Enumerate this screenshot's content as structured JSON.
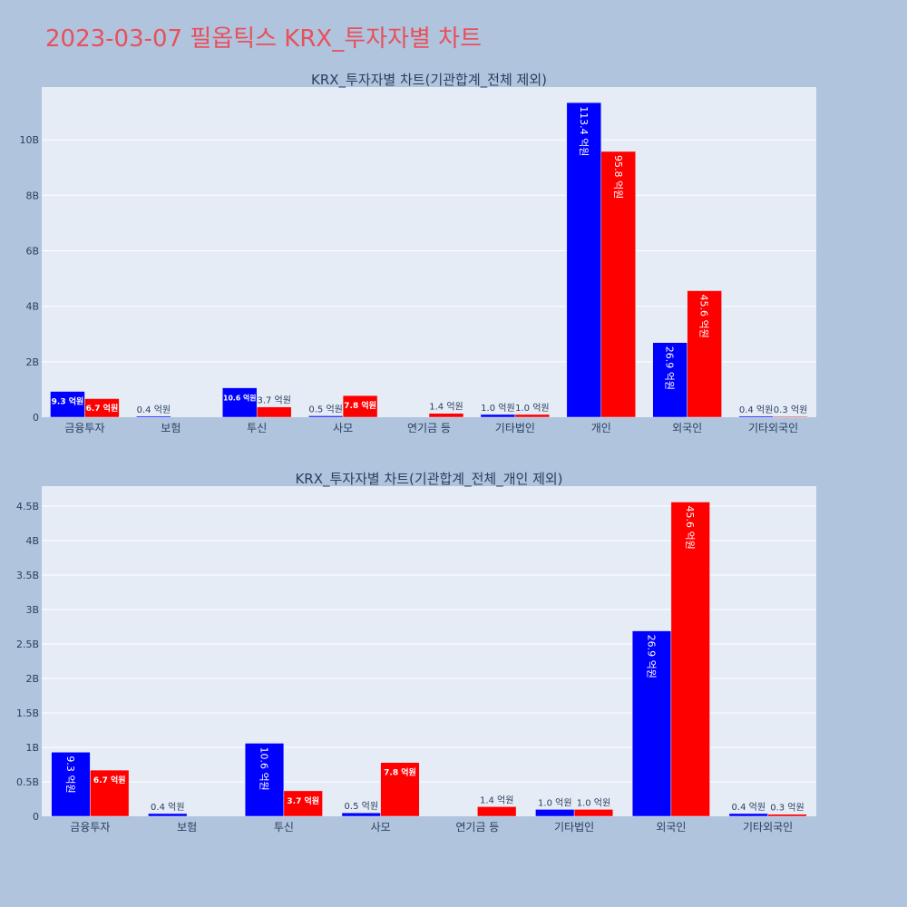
{
  "page_title": "2023-03-07 필옵틱스 KRX_투자자별 차트",
  "colors": {
    "buy": "#0000ff",
    "sell": "#ff0000",
    "plot_bg": "#e5ecf6",
    "paper_bg": "#b0c4de",
    "title": "#e8505b"
  },
  "chart_data": [
    {
      "type": "bar",
      "title": "KRX_투자자별 차트(기관합계_전체 제외)",
      "categories": [
        "금융투자",
        "보험",
        "투신",
        "사모",
        "연기금 등",
        "기타법인",
        "개인",
        "외국인",
        "기타외국인"
      ],
      "series": [
        {
          "values": [
            930000000,
            40000000,
            1060000000,
            50000000,
            0,
            100000000,
            11340000000,
            2690000000,
            40000000
          ],
          "labels": [
            "9.3 억원",
            "0.4 억원",
            "10.6 억원",
            "0.5 억원",
            "",
            "1.0 억원",
            "113.4 억원",
            "26.9 억원",
            "0.4 억원"
          ]
        },
        {
          "values": [
            670000000,
            0,
            370000000,
            780000000,
            140000000,
            100000000,
            9580000000,
            4560000000,
            30000000
          ],
          "labels": [
            "6.7 억원",
            "",
            "3.7 억원",
            "7.8 억원",
            "1.4 억원",
            "1.0 억원",
            "95.8 억원",
            "45.6 억원",
            "0.3 억원"
          ]
        }
      ],
      "y_ticks": [
        0,
        2000000000,
        4000000000,
        6000000000,
        8000000000,
        10000000000
      ],
      "y_tick_labels": [
        "0",
        "2B",
        "4B",
        "6B",
        "8B",
        "10B"
      ],
      "ylim": [
        0,
        11900000000
      ],
      "grid": true,
      "legend": "none"
    },
    {
      "type": "bar",
      "title": "KRX_투자자별 차트(기관합계_전체_개인 제외)",
      "categories": [
        "금융투자",
        "보험",
        "투신",
        "사모",
        "연기금 등",
        "기타법인",
        "외국인",
        "기타외국인"
      ],
      "series": [
        {
          "values": [
            930000000,
            40000000,
            1060000000,
            50000000,
            0,
            100000000,
            2690000000,
            40000000
          ],
          "labels": [
            "9.3 억원",
            "0.4 억원",
            "10.6 억원",
            "0.5 억원",
            "",
            "1.0 억원",
            "26.9 억원",
            "0.4 억원"
          ]
        },
        {
          "values": [
            670000000,
            0,
            370000000,
            780000000,
            140000000,
            100000000,
            4560000000,
            30000000
          ],
          "labels": [
            "6.7 억원",
            "",
            "3.7 억원",
            "7.8 억원",
            "1.4 억원",
            "1.0 억원",
            "45.6 억원",
            "0.3 억원"
          ]
        }
      ],
      "y_ticks": [
        0,
        500000000,
        1000000000,
        1500000000,
        2000000000,
        2500000000,
        3000000000,
        3500000000,
        4000000000,
        4500000000
      ],
      "y_tick_labels": [
        "0",
        "0.5B",
        "1B",
        "1.5B",
        "2B",
        "2.5B",
        "3B",
        "3.5B",
        "4B",
        "4.5B"
      ],
      "ylim": [
        0,
        4790000000
      ],
      "grid": true,
      "legend": "none"
    }
  ]
}
